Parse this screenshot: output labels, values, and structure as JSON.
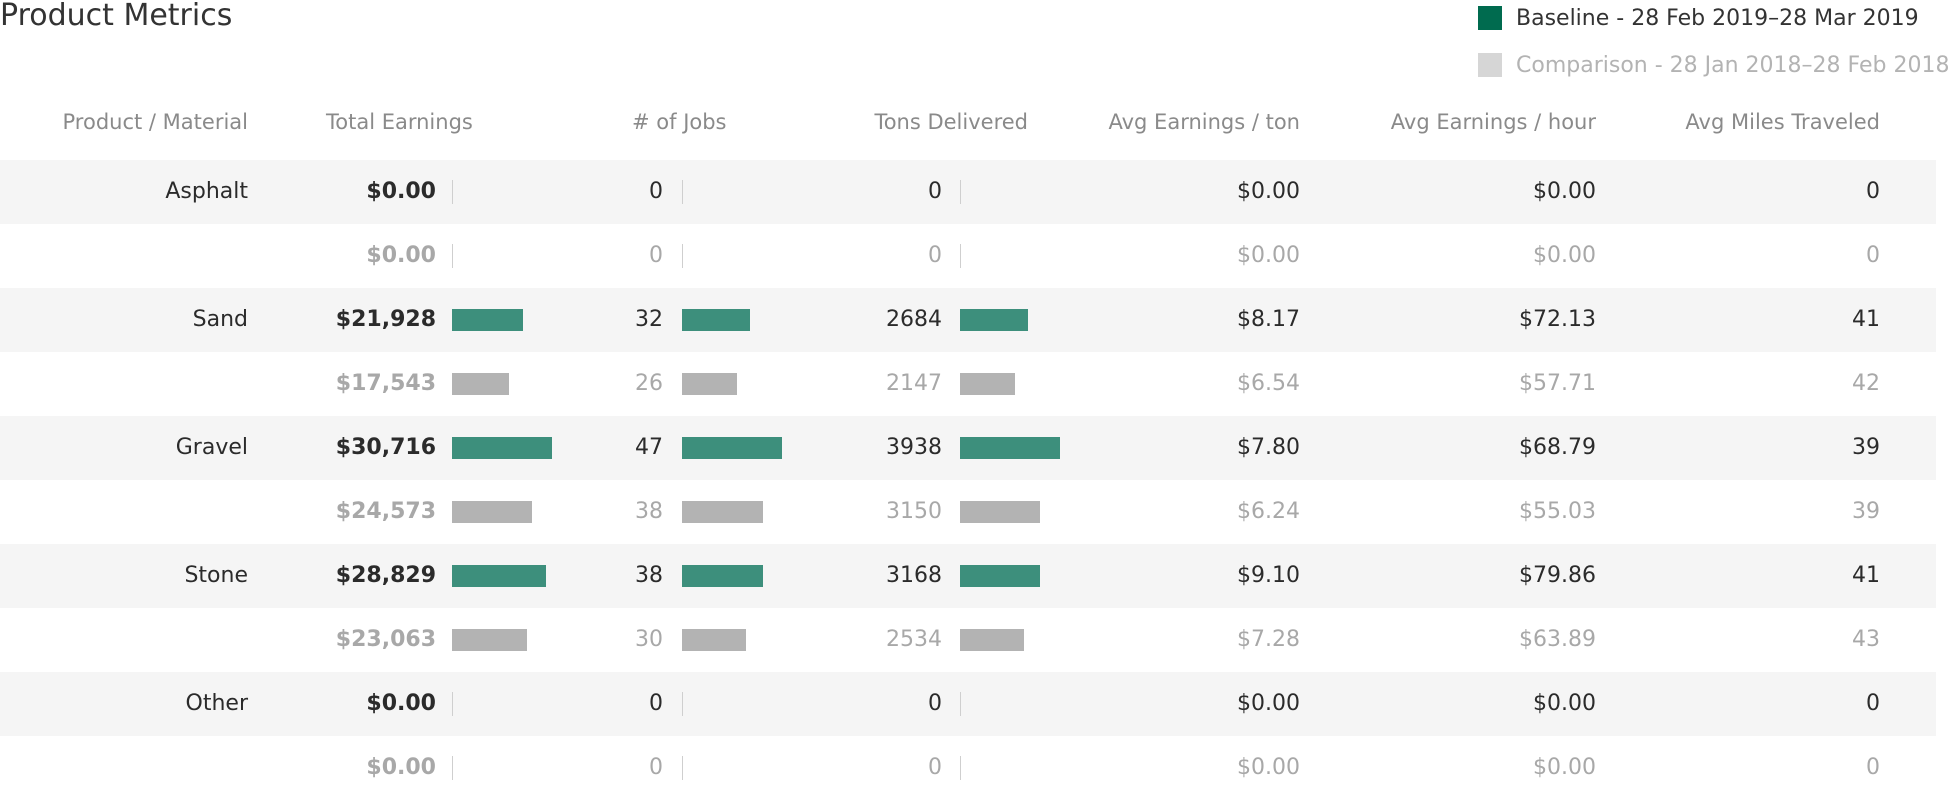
{
  "title": "Product Metrics",
  "legend": {
    "baseline": "Baseline - 28 Feb 2019–28 Mar 2019",
    "comparison": "Comparison - 28 Jan 2018–28 Feb 2018",
    "baseline_color": "#006b4f",
    "comparison_color": "#d6d6d6"
  },
  "chart_data": {
    "type": "table",
    "columns": [
      "Product / Material",
      "Total Earnings",
      "# of Jobs",
      "Tons Delivered",
      "Avg Earnings / ton",
      "Avg Earnings / hour",
      "Avg Miles Traveled"
    ],
    "bar_color_baseline": "#3d8f7c",
    "bar_color_comparison": "#b3b3b3",
    "rows": [
      {
        "product": "Asphalt",
        "series": "baseline",
        "earnings": "$0.00",
        "earnings_value": 0,
        "jobs": "0",
        "jobs_value": 0,
        "tons": "0",
        "tons_value": 0,
        "avg_ton": "$0.00",
        "avg_hour": "$0.00",
        "miles": "0"
      },
      {
        "product": "",
        "series": "comparison",
        "earnings": "$0.00",
        "earnings_value": 0,
        "jobs": "0",
        "jobs_value": 0,
        "tons": "0",
        "tons_value": 0,
        "avg_ton": "$0.00",
        "avg_hour": "$0.00",
        "miles": "0"
      },
      {
        "product": "Sand",
        "series": "baseline",
        "earnings": "$21,928",
        "earnings_value": 21928,
        "jobs": "32",
        "jobs_value": 32,
        "tons": "2684",
        "tons_value": 2684,
        "avg_ton": "$8.17",
        "avg_hour": "$72.13",
        "miles": "41"
      },
      {
        "product": "",
        "series": "comparison",
        "earnings": "$17,543",
        "earnings_value": 17543,
        "jobs": "26",
        "jobs_value": 26,
        "tons": "2147",
        "tons_value": 2147,
        "avg_ton": "$6.54",
        "avg_hour": "$57.71",
        "miles": "42"
      },
      {
        "product": "Gravel",
        "series": "baseline",
        "earnings": "$30,716",
        "earnings_value": 30716,
        "jobs": "47",
        "jobs_value": 47,
        "tons": "3938",
        "tons_value": 3938,
        "avg_ton": "$7.80",
        "avg_hour": "$68.79",
        "miles": "39"
      },
      {
        "product": "",
        "series": "comparison",
        "earnings": "$24,573",
        "earnings_value": 24573,
        "jobs": "38",
        "jobs_value": 38,
        "tons": "3150",
        "tons_value": 3150,
        "avg_ton": "$6.24",
        "avg_hour": "$55.03",
        "miles": "39"
      },
      {
        "product": "Stone",
        "series": "baseline",
        "earnings": "$28,829",
        "earnings_value": 28829,
        "jobs": "38",
        "jobs_value": 38,
        "tons": "3168",
        "tons_value": 3168,
        "avg_ton": "$9.10",
        "avg_hour": "$79.86",
        "miles": "41"
      },
      {
        "product": "",
        "series": "comparison",
        "earnings": "$23,063",
        "earnings_value": 23063,
        "jobs": "30",
        "jobs_value": 30,
        "tons": "2534",
        "tons_value": 2534,
        "avg_ton": "$7.28",
        "avg_hour": "$63.89",
        "miles": "43"
      },
      {
        "product": "Other",
        "series": "baseline",
        "earnings": "$0.00",
        "earnings_value": 0,
        "jobs": "0",
        "jobs_value": 0,
        "tons": "0",
        "tons_value": 0,
        "avg_ton": "$0.00",
        "avg_hour": "$0.00",
        "miles": "0"
      },
      {
        "product": "",
        "series": "comparison",
        "earnings": "$0.00",
        "earnings_value": 0,
        "jobs": "0",
        "jobs_value": 0,
        "tons": "0",
        "tons_value": 0,
        "avg_ton": "$0.00",
        "avg_hour": "$0.00",
        "miles": "0"
      }
    ]
  }
}
